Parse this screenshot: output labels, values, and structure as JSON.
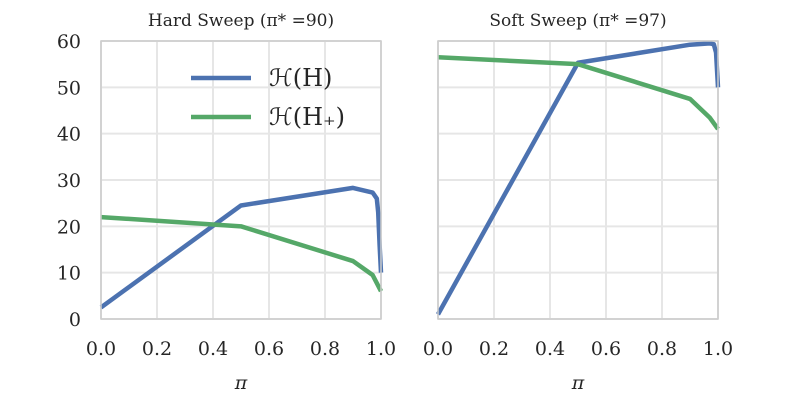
{
  "chart_data": [
    {
      "type": "line",
      "title": "Hard Sweep (π* =90)",
      "xlabel": "π",
      "ylabel": "",
      "xlim": [
        0,
        1
      ],
      "ylim": [
        0,
        60
      ],
      "xticks": [
        "0.0",
        "0.2",
        "0.4",
        "0.6",
        "0.8",
        "1.0"
      ],
      "yticks": [
        "0",
        "10",
        "20",
        "30",
        "40",
        "50",
        "60"
      ],
      "grid": true,
      "legend": "upper-center",
      "series": [
        {
          "name": "ℋ(H)",
          "color": "#4c72b0",
          "x": [
            0.0,
            0.5,
            0.9,
            0.97,
            0.985,
            0.99,
            0.995,
            1.0
          ],
          "y": [
            2.5,
            24.5,
            28.3,
            27.3,
            26.0,
            23.0,
            16.0,
            10.0
          ]
        },
        {
          "name": "ℋ(H₊)",
          "color": "#55a868",
          "x": [
            0.0,
            0.5,
            0.9,
            0.97,
            1.0
          ],
          "y": [
            22.0,
            20.0,
            12.5,
            9.5,
            6.0
          ]
        }
      ]
    },
    {
      "type": "line",
      "title": "Soft Sweep (π* =97)",
      "xlabel": "π",
      "ylabel": "",
      "xlim": [
        0,
        1
      ],
      "ylim": [
        0,
        60
      ],
      "xticks": [
        "0.0",
        "0.2",
        "0.4",
        "0.6",
        "0.8",
        "1.0"
      ],
      "yticks": [],
      "grid": true,
      "series": [
        {
          "name": "",
          "color": "#4c72b0",
          "x": [
            0.0,
            0.5,
            0.9,
            0.97,
            0.985,
            0.993,
            1.0
          ],
          "y": [
            1.0,
            55.3,
            59.2,
            59.5,
            59.3,
            57.5,
            50.0
          ]
        },
        {
          "name": "",
          "color": "#55a868",
          "x": [
            0.0,
            0.5,
            0.9,
            0.97,
            1.0
          ],
          "y": [
            56.5,
            55.0,
            47.5,
            43.5,
            41.0
          ]
        }
      ]
    }
  ]
}
